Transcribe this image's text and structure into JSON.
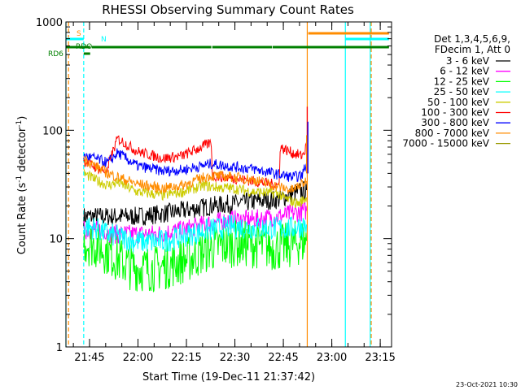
{
  "chart_data": {
    "type": "line",
    "title": "RHESSI Observing Summary Count Rates",
    "xlabel": "Start Time (19-Dec-11 21:37:42)",
    "ylabel": "Count Rate (s",
    "ylabel_sup1": "-1",
    "ylabel_mid": " detector",
    "ylabel_sup2": "-1",
    "ylabel_end": ")",
    "yscale": "log",
    "ylim": [
      1,
      1000
    ],
    "xlim": [
      "21:37:42",
      "23:18:30"
    ],
    "x_units": "minutes after 21:37:42",
    "x_ticks": [
      {
        "label": "21:45",
        "t": 7.3
      },
      {
        "label": "22:00",
        "t": 22.3
      },
      {
        "label": "22:15",
        "t": 37.3
      },
      {
        "label": "22:30",
        "t": 52.3
      },
      {
        "label": "22:45",
        "t": 67.3
      },
      {
        "label": "23:00",
        "t": 82.3
      },
      {
        "label": "23:15",
        "t": 97.3
      }
    ],
    "y_ticks": [
      {
        "label": "1",
        "v": 1
      },
      {
        "label": "10",
        "v": 10
      },
      {
        "label": "100",
        "v": 100
      },
      {
        "label": "1000",
        "v": 1000
      }
    ],
    "legend": {
      "header": [
        "Det 1,3,4,5,6,9,",
        "FDecim 1, Att 0"
      ],
      "placement": "right"
    },
    "series": [
      {
        "name": "3 - 6 keV",
        "color": "#000000",
        "noise": 0.09,
        "points": [
          [
            5.5,
            16
          ],
          [
            12,
            16
          ],
          [
            16,
            16
          ],
          [
            22,
            16
          ],
          [
            30,
            17
          ],
          [
            36,
            18
          ],
          [
            45,
            20
          ],
          [
            52,
            21
          ],
          [
            58,
            22
          ],
          [
            66,
            23
          ],
          [
            70,
            26
          ],
          [
            74,
            28
          ],
          [
            74.5,
            28
          ]
        ]
      },
      {
        "name": "6 - 12 keV",
        "color": "#ff00ff",
        "noise": 0.09,
        "points": [
          [
            5.5,
            12
          ],
          [
            12,
            12
          ],
          [
            14,
            11
          ],
          [
            16,
            11
          ],
          [
            20,
            11
          ],
          [
            28,
            11
          ],
          [
            36,
            12
          ],
          [
            45,
            14
          ],
          [
            52,
            15
          ],
          [
            58,
            15
          ],
          [
            66,
            16
          ],
          [
            70,
            17
          ],
          [
            74,
            18
          ],
          [
            74.5,
            18
          ]
        ]
      },
      {
        "name": "12 - 25 keV",
        "color": "#00ff00",
        "noise": 0.22,
        "points": [
          [
            5.5,
            9.5
          ],
          [
            10,
            8.5
          ],
          [
            13,
            7.5
          ],
          [
            16,
            6.5
          ],
          [
            20,
            5.5
          ],
          [
            24,
            5.3
          ],
          [
            28,
            5.3
          ],
          [
            33,
            5.8
          ],
          [
            38,
            6.5
          ],
          [
            44,
            8
          ],
          [
            52,
            9
          ],
          [
            58,
            8.8
          ],
          [
            64,
            8.2
          ],
          [
            68,
            8.5
          ],
          [
            72,
            9.2
          ],
          [
            74.5,
            9.5
          ]
        ]
      },
      {
        "name": "25 - 50 keV",
        "color": "#00ffff",
        "noise": 0.11,
        "points": [
          [
            5.5,
            13
          ],
          [
            9,
            12.5
          ],
          [
            13,
            11
          ],
          [
            16,
            10.5
          ],
          [
            21,
            9.5
          ],
          [
            26,
            9.3
          ],
          [
            31,
            9.6
          ],
          [
            36,
            10.5
          ],
          [
            44,
            12
          ],
          [
            52,
            13
          ],
          [
            58,
            12.5
          ],
          [
            66,
            12.5
          ],
          [
            70,
            12.5
          ],
          [
            74.5,
            13.5
          ]
        ]
      },
      {
        "name": "50 - 100 keV",
        "color": "#cccc00",
        "noise": 0.05,
        "points": [
          [
            5.5,
            40
          ],
          [
            9,
            35
          ],
          [
            13,
            31
          ],
          [
            16,
            33
          ],
          [
            22,
            27
          ],
          [
            30,
            25
          ],
          [
            36,
            27
          ],
          [
            43,
            31
          ],
          [
            45,
            30
          ],
          [
            52,
            29
          ],
          [
            58,
            27
          ],
          [
            66,
            26
          ],
          [
            67,
            24
          ],
          [
            70,
            22
          ],
          [
            72,
            21
          ],
          [
            74.5,
            24
          ]
        ]
      },
      {
        "name": "100 - 300 keV",
        "color": "#ff0000",
        "noise": 0.05,
        "points": [
          [
            5.5,
            52
          ],
          [
            9,
            46
          ],
          [
            13,
            41
          ],
          [
            13.3,
            50
          ],
          [
            16,
            84
          ],
          [
            22,
            64
          ],
          [
            30,
            55
          ],
          [
            36,
            58
          ],
          [
            45,
            77
          ],
          [
            45.3,
            38
          ],
          [
            52,
            36
          ],
          [
            58,
            34
          ],
          [
            66,
            31
          ],
          [
            66.3,
            70
          ],
          [
            70,
            62
          ],
          [
            73,
            58
          ],
          [
            74,
            65
          ],
          [
            74.5,
            72
          ]
        ]
      },
      {
        "name": "300 - 800 keV",
        "color": "#0000ff",
        "noise": 0.05,
        "points": [
          [
            5.5,
            58
          ],
          [
            9,
            55
          ],
          [
            13,
            50
          ],
          [
            16,
            62
          ],
          [
            22,
            47
          ],
          [
            30,
            42
          ],
          [
            36,
            43
          ],
          [
            45,
            49
          ],
          [
            52,
            46
          ],
          [
            58,
            44
          ],
          [
            66,
            39
          ],
          [
            70,
            37
          ],
          [
            73,
            38
          ],
          [
            74.5,
            50
          ]
        ]
      },
      {
        "name": "800 - 7000 keV",
        "color": "#ff8c00",
        "noise": 0.05,
        "points": [
          [
            5.5,
            55
          ],
          [
            9,
            47
          ],
          [
            13,
            40
          ],
          [
            16,
            37
          ],
          [
            22,
            32
          ],
          [
            30,
            29
          ],
          [
            36,
            31
          ],
          [
            43,
            37
          ],
          [
            45,
            38
          ],
          [
            52,
            37
          ],
          [
            58,
            35
          ],
          [
            66,
            30
          ],
          [
            70,
            28
          ],
          [
            74.5,
            34
          ]
        ]
      },
      {
        "name": "7000 - 15000 keV",
        "color": "#999900",
        "noise": 0,
        "points": []
      }
    ],
    "spikes": [
      {
        "color": "#ff0000",
        "t": 74.7,
        "v": 165
      },
      {
        "color": "#0000ff",
        "t": 74.9,
        "v": 120
      },
      {
        "color": "#ff8c00",
        "t": 74.5,
        "v": 90
      }
    ],
    "flags": [
      {
        "label": "S",
        "color": "#ff8c00"
      },
      {
        "label": "N",
        "color": "#00ffff"
      },
      {
        "label": "RDO",
        "color": "#008000"
      },
      {
        "label": "RD6",
        "color": "#008000"
      }
    ],
    "flag_bars": [
      {
        "flag": "S",
        "color": "#ff8c00",
        "segments": [
          [
            75,
            100
          ]
        ]
      },
      {
        "flag": "N",
        "color": "#00ffff",
        "segments": [
          [
            0,
            5.5
          ],
          [
            86.5,
            100
          ]
        ]
      },
      {
        "flag": "RDO",
        "color": "#008000",
        "segments": [
          [
            5.5,
            7.5
          ]
        ]
      },
      {
        "flag": "RD6",
        "color": "#008000",
        "segments": [
          [
            0,
            7.5
          ],
          [
            8,
            45
          ],
          [
            45.3,
            63.8
          ],
          [
            64,
            100
          ]
        ]
      }
    ],
    "markers": [
      {
        "t": 0,
        "color": "#00ffff",
        "dash": false
      },
      {
        "t": 0.8,
        "color": "#ff8c00",
        "dash": true
      },
      {
        "t": 5.5,
        "color": "#00ffff",
        "dash": true
      },
      {
        "t": 74.7,
        "color": "#ff8c00",
        "dash": false
      },
      {
        "t": 86.5,
        "color": "#00ffff",
        "dash": false
      },
      {
        "t": 94.2,
        "color": "#00ffff",
        "dash": false
      },
      {
        "t": 94.5,
        "color": "#ff8c00",
        "dash": true
      }
    ],
    "grid": false
  },
  "footer_date": "23-Oct-2021 10:30"
}
